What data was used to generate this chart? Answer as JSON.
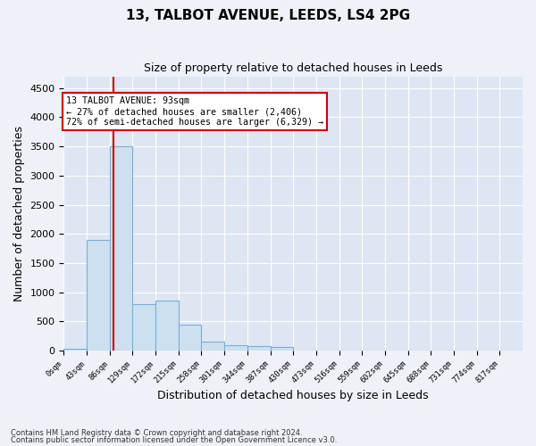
{
  "title1": "13, TALBOT AVENUE, LEEDS, LS4 2PG",
  "title2": "Size of property relative to detached houses in Leeds",
  "xlabel": "Distribution of detached houses by size in Leeds",
  "ylabel": "Number of detached properties",
  "bar_values": [
    30,
    1900,
    3500,
    790,
    850,
    450,
    160,
    100,
    80,
    65,
    0,
    0,
    0,
    0,
    0,
    0,
    0,
    0,
    0,
    0
  ],
  "bin_edges": [
    0,
    43,
    86,
    129,
    172,
    215,
    258,
    301,
    344,
    387,
    430,
    473,
    516,
    559,
    602,
    645,
    688,
    731,
    774,
    817,
    860
  ],
  "bar_color": "#cde0f0",
  "bar_edge_color": "#7aafd4",
  "property_sqm": 93,
  "smaller_pct": "27%",
  "smaller_n": "2,406",
  "larger_pct": "72%",
  "larger_n": "6,329",
  "red_line_color": "#cc0000",
  "annotation_box_edge_color": "#cc0000",
  "ylim": [
    0,
    4700
  ],
  "yticks": [
    0,
    500,
    1000,
    1500,
    2000,
    2500,
    3000,
    3500,
    4000,
    4500
  ],
  "footnote1": "Contains HM Land Registry data © Crown copyright and database right 2024.",
  "footnote2": "Contains public sector information licensed under the Open Government Licence v3.0.",
  "bg_color": "#eef2f8",
  "plot_bg_color": "#dde6f2"
}
